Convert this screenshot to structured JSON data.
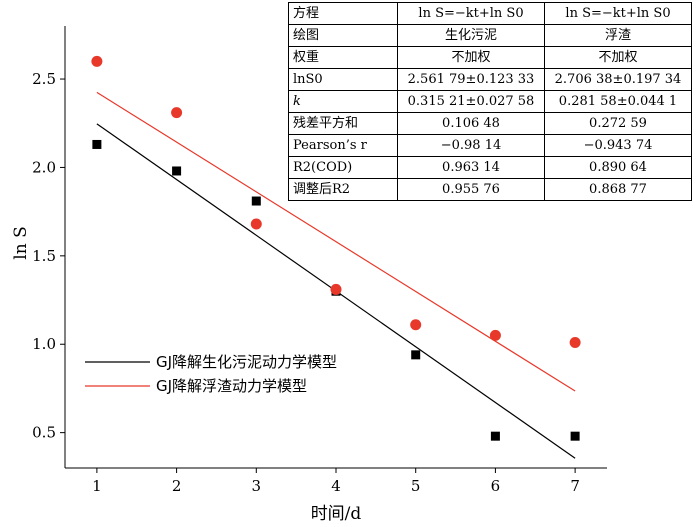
{
  "chart_data": {
    "type": "scatter",
    "xlabel": "时间/d",
    "ylabel": "ln S",
    "xlim": [
      0.6,
      7.4
    ],
    "ylim": [
      0.3,
      2.8
    ],
    "x_ticks": [
      1,
      2,
      3,
      4,
      5,
      6,
      7
    ],
    "y_ticks": [
      0.5,
      1.0,
      1.5,
      2.0,
      2.5
    ],
    "y_tick_labels": [
      "0.5",
      "1.0",
      "1.5",
      "2.0",
      "2.5"
    ],
    "legend_position": "bottom-left",
    "series": [
      {
        "name": "GJ降解生化污泥动力学模型",
        "marker": "square",
        "color": "#000000",
        "x": [
          1,
          2,
          3,
          4,
          5,
          6,
          7
        ],
        "y": [
          2.13,
          1.98,
          1.81,
          1.3,
          0.94,
          0.48,
          0.48
        ],
        "fit_intercept": 2.56179,
        "fit_slope": -0.31521
      },
      {
        "name": "GJ降解浮渣动力学模型",
        "marker": "circle",
        "color": "#e8382a",
        "x": [
          1,
          2,
          3,
          4,
          5,
          6,
          7
        ],
        "y": [
          2.6,
          2.31,
          1.68,
          1.31,
          1.11,
          1.05,
          1.01
        ],
        "fit_intercept": 2.70638,
        "fit_slope": -0.28158
      }
    ],
    "table": {
      "rows": [
        [
          "方程",
          "ln S=−kt+ln S0",
          "ln S=−kt+ln S0"
        ],
        [
          "绘图",
          "生化污泥",
          "浮渣"
        ],
        [
          "权重",
          "不加权",
          "不加权"
        ],
        [
          "lnS0",
          "2.561 79±0.123 33",
          "2.706 38±0.197 34"
        ],
        [
          "k",
          "0.315 21±0.027 58",
          "0.281 58±0.044 1"
        ],
        [
          "残差平方和",
          "0.106 48",
          "0.272 59"
        ],
        [
          "Pearson’s r",
          "−0.98 14",
          "−0.943 74"
        ],
        [
          "R2(COD)",
          "0.963 14",
          "0.890 64"
        ],
        [
          "调整后R2",
          "0.955 76",
          "0.868 77"
        ]
      ]
    }
  }
}
